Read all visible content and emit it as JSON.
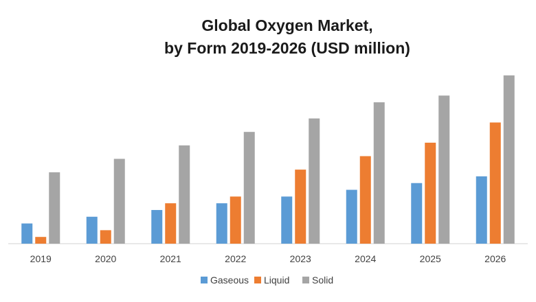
{
  "chart_data": {
    "type": "bar",
    "title_lines": [
      "Global Oxygen Market,",
      "by Form 2019-2026 (USD million)"
    ],
    "xlabel": "",
    "ylabel": "",
    "categories": [
      "2019",
      "2020",
      "2021",
      "2022",
      "2023",
      "2024",
      "2025",
      "2026"
    ],
    "series": [
      {
        "name": "Gaseous",
        "color": "#5b9bd5",
        "values": [
          15,
          20,
          25,
          30,
          35,
          40,
          45,
          50
        ]
      },
      {
        "name": "Liquid",
        "color": "#ed7d31",
        "values": [
          5,
          10,
          30,
          35,
          55,
          65,
          75,
          90
        ]
      },
      {
        "name": "Solid",
        "color": "#a5a5a5",
        "values": [
          53,
          63,
          73,
          83,
          93,
          105,
          110,
          125
        ]
      }
    ],
    "ylim": [
      0,
      130
    ],
    "grid": false,
    "legend_position": "bottom"
  }
}
